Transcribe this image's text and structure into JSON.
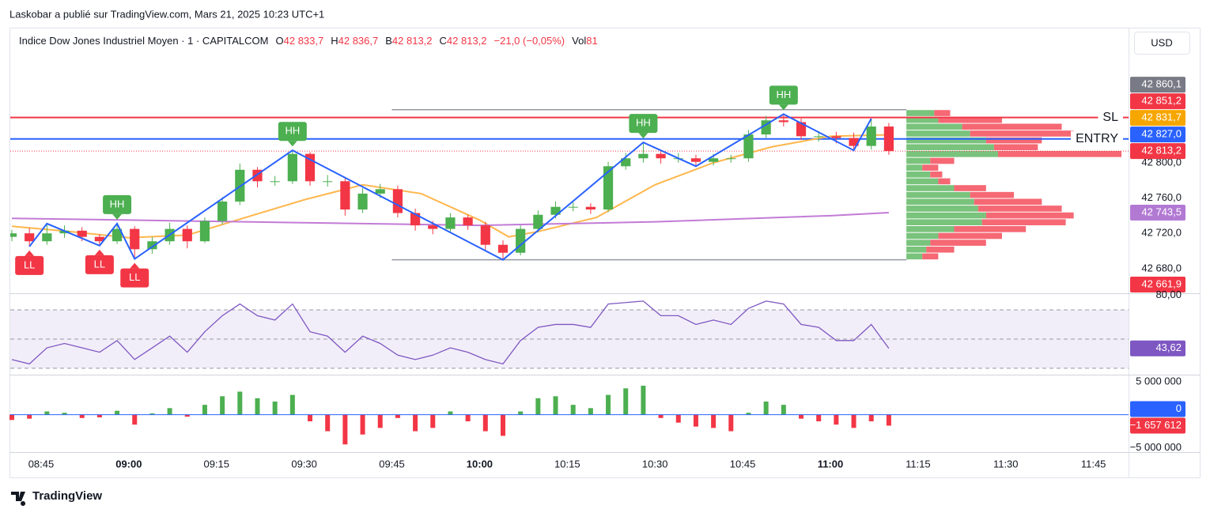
{
  "header": {
    "publisher": "Laskobar a publié sur TradingView.com, Mars 21, 2025 10:23 UTC+1",
    "symbol": "Indice Dow Jones Industriel Moyen · 1 · CAPITALCOM",
    "ohlc": [
      {
        "key": "O",
        "value": "42 833,7"
      },
      {
        "key": "H",
        "value": "42 836,7"
      },
      {
        "key": "B",
        "value": "42 813,2"
      },
      {
        "key": "C",
        "value": "42 813,2"
      }
    ],
    "change": "−21,0 (−0,05%)",
    "vol_key": "Vol",
    "vol": "81",
    "currency": "USD"
  },
  "footer": "TradingView",
  "chart_data": [
    {
      "type": "candlestick",
      "x": [
        "08:40",
        "08:43",
        "08:46",
        "08:49",
        "08:52",
        "08:55",
        "08:58",
        "09:01",
        "09:04",
        "09:07",
        "09:10",
        "09:13",
        "09:16",
        "09:19",
        "09:22",
        "09:25",
        "09:28",
        "09:31",
        "09:34",
        "09:37",
        "09:40",
        "09:43",
        "09:46",
        "09:49",
        "09:52",
        "09:55",
        "09:58",
        "10:01",
        "10:04",
        "10:07",
        "10:10",
        "10:13",
        "10:16",
        "10:19",
        "10:22",
        "10:25",
        "10:28",
        "10:31",
        "10:34",
        "10:37",
        "10:40",
        "10:43",
        "10:46",
        "10:49",
        "10:52",
        "10:55",
        "10:58",
        "11:01",
        "11:04",
        "11:07",
        "11:10"
      ],
      "open": [
        42716,
        42720,
        42711,
        42720,
        42723,
        42716,
        42711,
        42725,
        42702,
        42711,
        42725,
        42711,
        42734,
        42756,
        42792,
        42779,
        42779,
        42810,
        42779,
        42779,
        42747,
        42765,
        42770,
        42743,
        42729,
        42725,
        42738,
        42729,
        42707,
        42698,
        42725,
        42741,
        42750,
        42750,
        42747,
        42796,
        42805,
        42810,
        42805,
        42805,
        42801,
        42805,
        42805,
        42832,
        42848,
        42846,
        42830,
        42830,
        42828,
        42819,
        42841
      ],
      "high": [
        42724,
        42726,
        42731,
        42729,
        42727,
        42719,
        42731,
        42728,
        42716,
        42732,
        42729,
        42738,
        42761,
        42799,
        42795,
        42785,
        42814,
        42812,
        42786,
        42783,
        42771,
        42776,
        42774,
        42748,
        42734,
        42743,
        42741,
        42733,
        42712,
        42729,
        42746,
        42756,
        42755,
        42754,
        42801,
        42811,
        42823,
        42814,
        42811,
        42809,
        42810,
        42809,
        42837,
        42853,
        42855,
        42850,
        42836,
        42835,
        42834,
        42850,
        42845
      ],
      "low": [
        42711,
        42705,
        42707,
        42715,
        42711,
        42706,
        42708,
        42691,
        42697,
        42707,
        42703,
        42709,
        42730,
        42752,
        42772,
        42774,
        42776,
        42774,
        42773,
        42740,
        42743,
        42760,
        42738,
        42723,
        42719,
        42722,
        42724,
        42701,
        42690,
        42695,
        42721,
        42737,
        42745,
        42742,
        42744,
        42792,
        42800,
        42799,
        42800,
        42796,
        42797,
        42800,
        42801,
        42828,
        42841,
        42826,
        42824,
        42822,
        42814,
        42815,
        42809
      ],
      "close": [
        42720,
        42711,
        42720,
        42723,
        42716,
        42711,
        42725,
        42702,
        42711,
        42725,
        42711,
        42734,
        42756,
        42792,
        42779,
        42779,
        42810,
        42779,
        42779,
        42747,
        42765,
        42770,
        42743,
        42729,
        42725,
        42738,
        42729,
        42707,
        42698,
        42725,
        42741,
        42750,
        42750,
        42747,
        42796,
        42805,
        42810,
        42805,
        42805,
        42801,
        42805,
        42805,
        42832,
        42848,
        42846,
        42830,
        42830,
        42828,
        42819,
        42841,
        42813.2
      ],
      "up_color": "#4caf50",
      "down_color": "#f23645",
      "xlim": [
        "08:40",
        "11:51"
      ],
      "xticks": [
        "08:45",
        "09:00",
        "09:15",
        "09:30",
        "09:45",
        "10:00",
        "10:15",
        "10:30",
        "10:45",
        "11:00",
        "11:15",
        "11:30",
        "11:45"
      ],
      "ylim": [
        42653,
        42953
      ],
      "yticks": [
        {
          "value": 42680,
          "label": "42 680,0"
        },
        {
          "value": 42720,
          "label": "42 720,0"
        },
        {
          "value": 42760,
          "label": "42 760,0"
        },
        {
          "value": 42800,
          "label": "42 800,0"
        }
      ],
      "lines": [
        {
          "color": "#ffb74d",
          "x": [
            "08:40",
            "08:50",
            "09:00",
            "09:10",
            "09:20",
            "09:30",
            "09:40",
            "09:50",
            "10:00",
            "10:05",
            "10:10",
            "10:20",
            "10:30",
            "10:40",
            "10:50",
            "11:00",
            "11:10"
          ],
          "values": [
            42728,
            42722,
            42715,
            42718,
            42738,
            42758,
            42775,
            42765,
            42735,
            42716,
            42722,
            42738,
            42775,
            42800,
            42818,
            42830,
            42831.7
          ]
        },
        {
          "color": "#c27bd6",
          "x": [
            "08:40",
            "09:00",
            "09:30",
            "10:00",
            "10:30",
            "11:00",
            "11:10"
          ],
          "values": [
            42737,
            42735,
            42732,
            42729,
            42733,
            42740,
            42743.5
          ]
        }
      ],
      "zigzag_color": "#2962ff",
      "pivots": [
        {
          "x": "08:43",
          "price": 42705,
          "label": "LL",
          "color": "#f23645"
        },
        {
          "x": "08:46",
          "price": 42731
        },
        {
          "x": "08:55",
          "price": 42706,
          "label": "LL",
          "color": "#f23645"
        },
        {
          "x": "08:58",
          "price": 42731,
          "label": "HH",
          "color": "#4caf50"
        },
        {
          "x": "09:01",
          "price": 42691,
          "label": "LL",
          "color": "#f23645"
        },
        {
          "x": "09:28",
          "price": 42814,
          "label": "HH",
          "color": "#4caf50"
        },
        {
          "x": "10:04",
          "price": 42690
        },
        {
          "x": "10:28",
          "price": 42823,
          "label": "HH",
          "color": "#4caf50"
        },
        {
          "x": "10:37",
          "price": 42796
        },
        {
          "x": "10:52",
          "price": 42855,
          "label": "HH",
          "color": "#4caf50"
        },
        {
          "x": "11:04",
          "price": 42814
        },
        {
          "x": "11:07",
          "price": 42850
        }
      ],
      "range": {
        "x": [
          "09:45",
          "11:13"
        ],
        "values": [
          42860.1,
          42690
        ],
        "color": "#9598a1"
      },
      "volume_profile": {
        "low": 42690,
        "high": 42860.1,
        "up_color": "#4caf50",
        "down_color": "#f23645",
        "up": [
          20,
          25,
          30,
          40,
          60,
          95,
          100,
          90,
          85,
          80,
          60,
          40,
          30,
          20,
          30,
          115,
          110,
          100,
          80,
          70,
          40,
          35
        ],
        "down": [
          20,
          35,
          70,
          80,
          90,
          105,
          110,
          105,
          85,
          55,
          40,
          15,
          15,
          20,
          30,
          155,
          55,
          70,
          130,
          125,
          80,
          20
        ]
      },
      "levels": [
        {
          "value": 42851.2,
          "color": "#f23645",
          "label": "SL"
        },
        {
          "value": 42827,
          "color": "#2962ff",
          "label": "ENTRY"
        },
        {
          "value": 42813.2,
          "color": "#f23645",
          "style": "dotted"
        }
      ],
      "markers": [
        {
          "value": 42860.1,
          "label": "42 860,1",
          "color": "#787b86"
        },
        {
          "value": 42851.2,
          "label": "42 851,2",
          "color": "#f23645"
        },
        {
          "value": 42831.7,
          "label": "42 831,7",
          "color": "#f7a600"
        },
        {
          "value": 42827,
          "label": "42 827,0",
          "color": "#2962ff"
        },
        {
          "value": 42813.2,
          "label": "42 813,2",
          "color": "#f23645"
        },
        {
          "value": 42743.5,
          "label": "42 743,5",
          "color": "#b279d3"
        },
        {
          "value": 42661.9,
          "label": "42 661,9",
          "color": "#f23645"
        }
      ]
    },
    {
      "type": "line",
      "values": [
        36,
        33,
        44,
        47,
        44,
        41,
        49,
        36,
        44,
        52,
        41,
        55,
        66,
        74,
        66,
        63,
        74,
        55,
        52,
        41,
        52,
        47,
        39,
        36,
        39,
        44,
        41,
        36,
        33,
        49,
        58,
        60,
        60,
        58,
        74,
        75,
        76,
        66,
        66,
        60,
        63,
        60,
        71,
        76,
        74,
        60,
        58,
        49,
        49,
        60,
        43.62
      ],
      "color": "#7e57c2",
      "band_color": "rgba(126,87,194,0.1)",
      "ylim": [
        27.8,
        80.8
      ],
      "yticks": [
        {
          "value": 80,
          "label": "80,00"
        }
      ],
      "bands": [
        70,
        50,
        30
      ],
      "markers": [
        {
          "value": 43.62,
          "label": "43,62",
          "color": "#7e57c2"
        }
      ]
    },
    {
      "type": "bar",
      "values": [
        -800000,
        -600000,
        500000,
        300000,
        -500000,
        -400000,
        600000,
        -1500000,
        200000,
        1000000,
        -300000,
        1500000,
        2800000,
        3500000,
        2500000,
        2000000,
        3000000,
        -1000000,
        -2500000,
        -4500000,
        -3000000,
        -2000000,
        -500000,
        -2500000,
        -2000000,
        500000,
        -1000000,
        -2500000,
        -3200000,
        500000,
        2500000,
        2800000,
        1500000,
        1000000,
        3000000,
        4000000,
        4400000,
        -500000,
        -1200000,
        -1800000,
        -2000000,
        -2500000,
        300000,
        2000000,
        1500000,
        -600000,
        -1000000,
        -1500000,
        -2000000,
        -1000000,
        -1657612
      ],
      "up_color": "#4caf50",
      "down_color": "#f23645",
      "baseline_color": "#2962ff",
      "ylim": [
        -5670000,
        5830000
      ],
      "yticks": [
        {
          "value": 5000000,
          "label": "5 000 000"
        },
        {
          "value": -5000000,
          "label": "−5 000 000"
        }
      ],
      "markers": [
        {
          "value": 0,
          "label": "0",
          "color": "#2962ff"
        },
        {
          "value": -1657612,
          "label": "−1 657 612",
          "color": "#f23645"
        }
      ]
    }
  ]
}
